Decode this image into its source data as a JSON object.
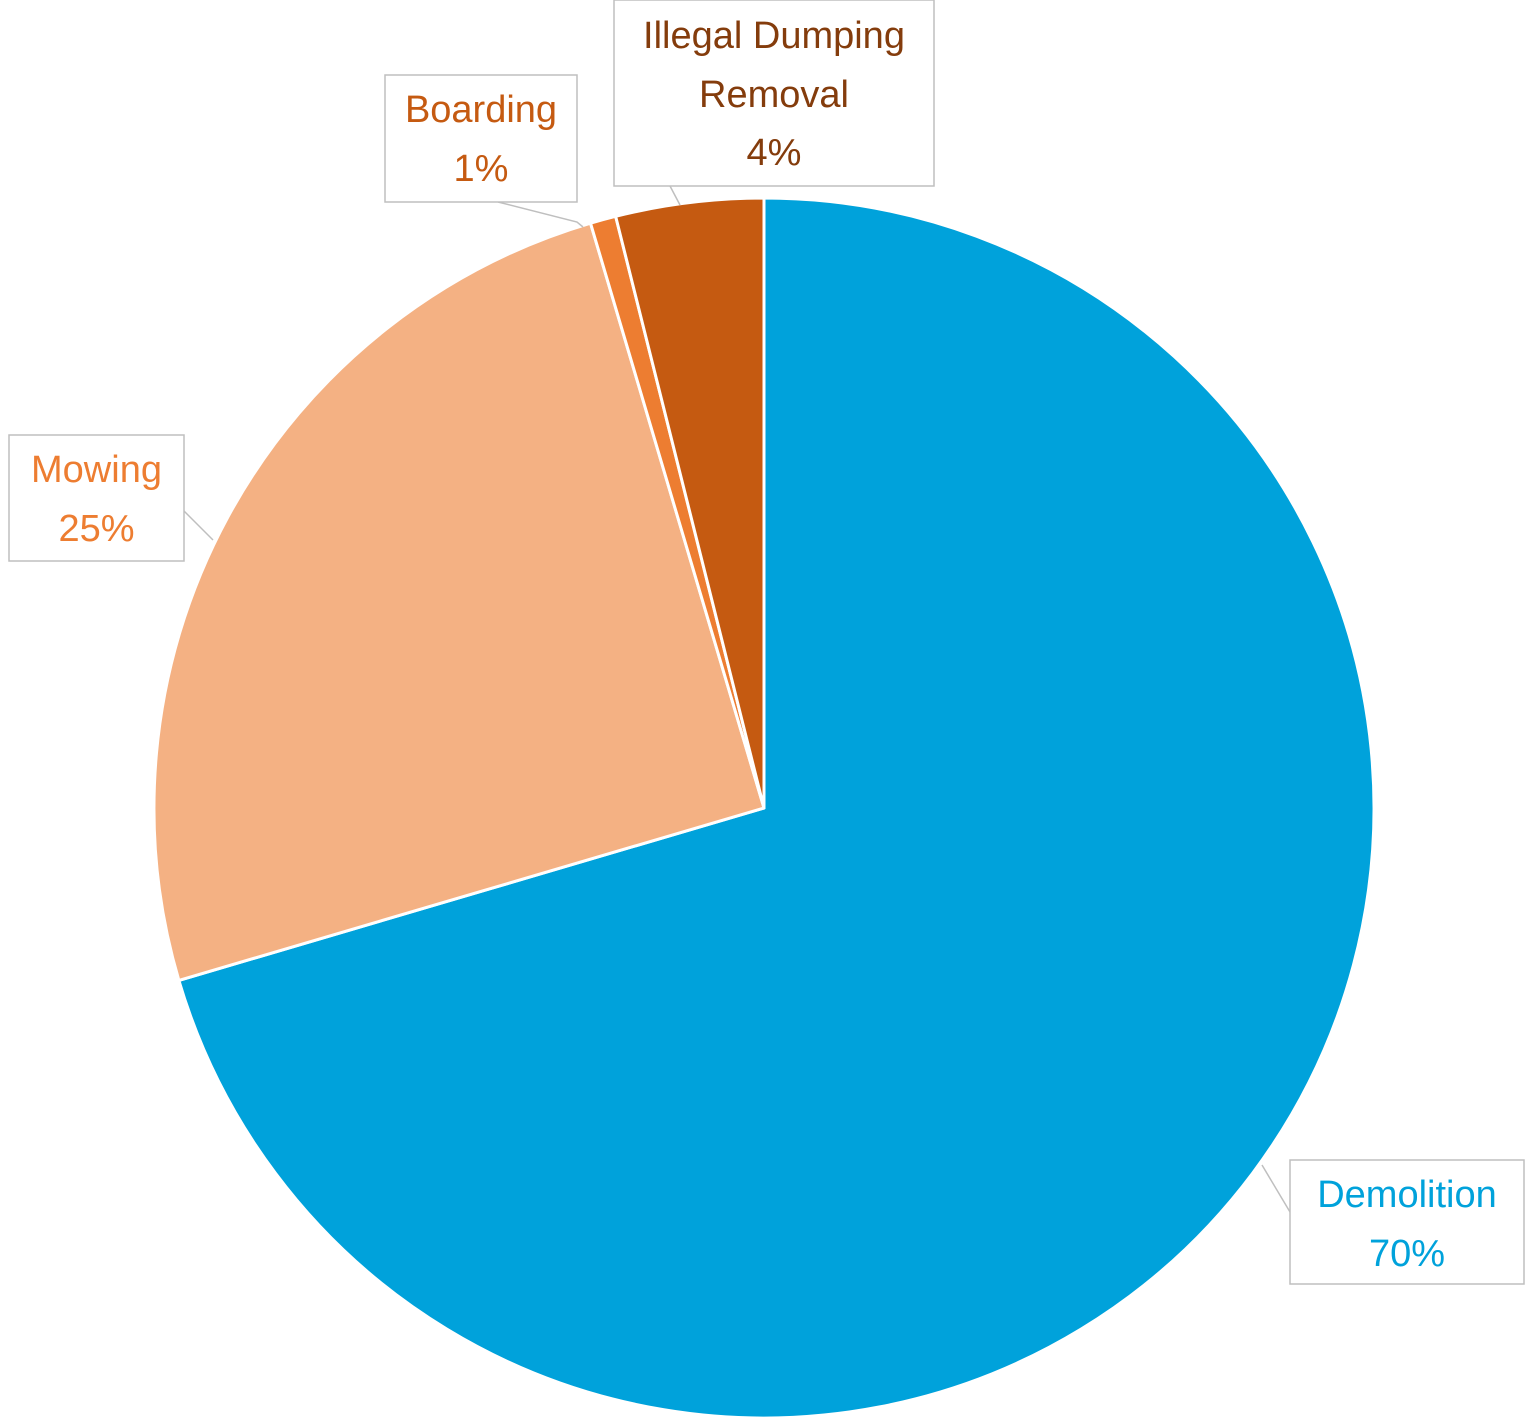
{
  "chart_data": {
    "type": "pie",
    "categories": [
      "Demolition",
      "Mowing",
      "Boarding",
      "Illegal Dumping Removal"
    ],
    "values": [
      70.44,
      24.97,
      0.68,
      3.91
    ],
    "series": [
      {
        "values": [
          70.44,
          24.97,
          0.68,
          3.91
        ]
      }
    ],
    "labels": [
      {
        "name": "Demolition",
        "name_lines": [
          "Demolition"
        ],
        "percent": "70%",
        "color": "#00A2DB"
      },
      {
        "name": "Mowing",
        "name_lines": [
          "Mowing"
        ],
        "percent": "25%",
        "color": "#ED7D31"
      },
      {
        "name": "Boarding",
        "name_lines": [
          "Boarding"
        ],
        "percent": "1%",
        "color": "#C55A11"
      },
      {
        "name": "Illegal Dumping Removal",
        "name_lines": [
          "Illegal Dumping",
          "Removal"
        ],
        "percent": "4%",
        "color": "#843C0C"
      }
    ],
    "slice_colors": [
      "#00A2DB",
      "#F4B183",
      "#ED7D31",
      "#C55A11"
    ],
    "start_angle": "12 o'clock",
    "direction": "clockwise",
    "title": "",
    "legend": "none"
  }
}
